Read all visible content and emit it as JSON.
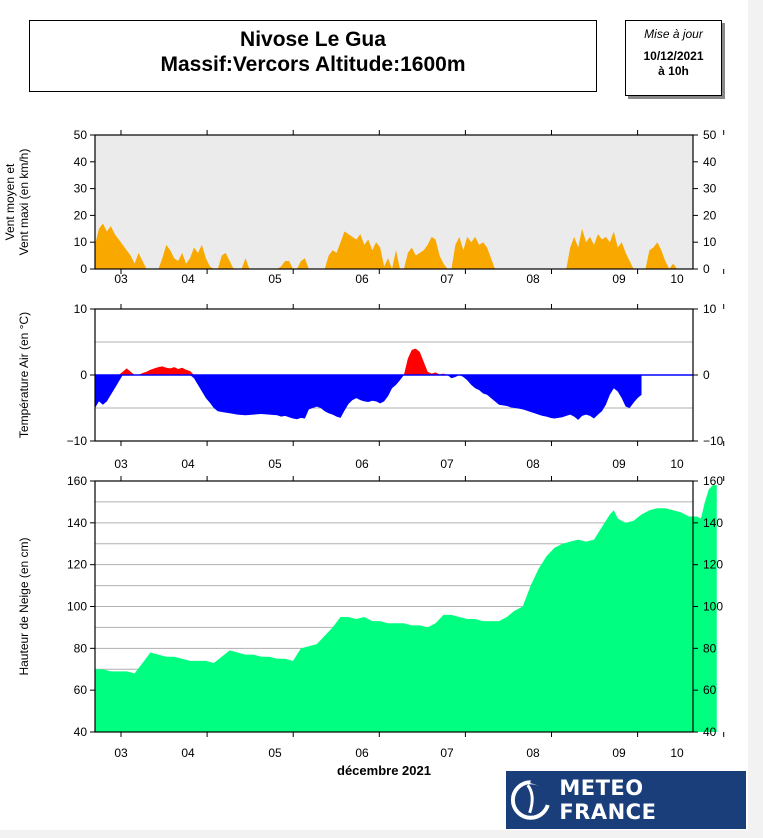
{
  "header": {
    "title_line1": "Nivose Le Gua",
    "title_line2": "Massif:Vercors Altitude:1600m",
    "update_label": "Mise à jour",
    "update_date": "10/12/2021",
    "update_time": "à 10h"
  },
  "brand": {
    "name": "METEO FRANCE",
    "logo_icon": "meteo-france-swirl-icon"
  },
  "colors": {
    "wind": "#f9a800",
    "temp_pos": "#ff0000",
    "temp_neg": "#0000ff",
    "snow": "#00ff80",
    "plot_bg_wind": "#ebebeb"
  },
  "chart_data": [
    {
      "type": "area",
      "ylabel_line1": "Vent moyen et",
      "ylabel_line2": "Vent maxi (en km/h)",
      "ylim": [
        0,
        50
      ],
      "yticks": [
        0,
        10,
        20,
        30,
        40,
        50
      ],
      "grid": false,
      "x_day_labels": [
        "03",
        "04",
        "05",
        "06",
        "07",
        "08",
        "09",
        "10"
      ],
      "x_range_days": [
        2.6,
        10.15
      ],
      "points": [
        [
          2.6,
          9
        ],
        [
          2.65,
          15
        ],
        [
          2.7,
          17
        ],
        [
          2.75,
          14
        ],
        [
          2.8,
          16
        ],
        [
          2.85,
          13
        ],
        [
          2.9,
          11
        ],
        [
          2.95,
          9
        ],
        [
          3.0,
          7
        ],
        [
          3.05,
          5
        ],
        [
          3.1,
          2
        ],
        [
          3.15,
          6
        ],
        [
          3.2,
          3
        ],
        [
          3.25,
          0
        ],
        [
          3.4,
          0
        ],
        [
          3.45,
          4
        ],
        [
          3.5,
          9
        ],
        [
          3.55,
          7
        ],
        [
          3.6,
          4
        ],
        [
          3.65,
          3
        ],
        [
          3.7,
          6
        ],
        [
          3.75,
          2
        ],
        [
          3.8,
          4
        ],
        [
          3.85,
          8
        ],
        [
          3.9,
          6
        ],
        [
          3.95,
          9
        ],
        [
          4.0,
          4
        ],
        [
          4.05,
          1
        ],
        [
          4.1,
          0
        ],
        [
          4.15,
          0
        ],
        [
          4.2,
          5
        ],
        [
          4.25,
          6
        ],
        [
          4.3,
          3
        ],
        [
          4.35,
          0
        ],
        [
          4.45,
          0
        ],
        [
          4.5,
          4
        ],
        [
          4.55,
          0
        ],
        [
          4.9,
          0
        ],
        [
          4.95,
          1
        ],
        [
          5.0,
          3
        ],
        [
          5.05,
          3
        ],
        [
          5.1,
          0
        ],
        [
          5.15,
          0
        ],
        [
          5.2,
          3
        ],
        [
          5.25,
          4
        ],
        [
          5.3,
          0
        ],
        [
          5.5,
          0
        ],
        [
          5.55,
          5
        ],
        [
          5.6,
          7
        ],
        [
          5.65,
          6
        ],
        [
          5.7,
          10
        ],
        [
          5.75,
          14
        ],
        [
          5.8,
          13
        ],
        [
          5.85,
          12
        ],
        [
          5.9,
          11
        ],
        [
          5.95,
          13
        ],
        [
          6.0,
          9
        ],
        [
          6.05,
          11
        ],
        [
          6.1,
          7
        ],
        [
          6.15,
          10
        ],
        [
          6.2,
          8
        ],
        [
          6.25,
          1
        ],
        [
          6.3,
          4
        ],
        [
          6.35,
          0
        ],
        [
          6.4,
          7
        ],
        [
          6.45,
          0
        ],
        [
          6.5,
          0
        ],
        [
          6.55,
          6
        ],
        [
          6.6,
          8
        ],
        [
          6.65,
          5
        ],
        [
          6.7,
          6
        ],
        [
          6.75,
          7
        ],
        [
          6.8,
          9
        ],
        [
          6.85,
          12
        ],
        [
          6.9,
          11
        ],
        [
          6.95,
          5
        ],
        [
          7.0,
          2
        ],
        [
          7.05,
          0
        ],
        [
          7.1,
          0
        ],
        [
          7.15,
          9
        ],
        [
          7.2,
          12
        ],
        [
          7.25,
          7
        ],
        [
          7.3,
          12
        ],
        [
          7.35,
          10
        ],
        [
          7.4,
          12
        ],
        [
          7.45,
          9
        ],
        [
          7.5,
          10
        ],
        [
          7.55,
          8
        ],
        [
          7.6,
          4
        ],
        [
          7.65,
          0
        ],
        [
          8.55,
          0
        ],
        [
          8.6,
          8
        ],
        [
          8.65,
          12
        ],
        [
          8.7,
          8
        ],
        [
          8.75,
          15
        ],
        [
          8.8,
          10
        ],
        [
          8.85,
          12
        ],
        [
          8.9,
          9
        ],
        [
          8.95,
          13
        ],
        [
          9.0,
          11
        ],
        [
          9.05,
          12
        ],
        [
          9.1,
          10
        ],
        [
          9.15,
          14
        ],
        [
          9.2,
          8
        ],
        [
          9.25,
          10
        ],
        [
          9.3,
          6
        ],
        [
          9.35,
          3
        ],
        [
          9.4,
          0
        ],
        [
          9.55,
          0
        ],
        [
          9.6,
          7
        ],
        [
          9.65,
          8
        ],
        [
          9.7,
          10
        ],
        [
          9.75,
          7
        ],
        [
          9.8,
          3
        ],
        [
          9.85,
          0
        ],
        [
          9.9,
          2
        ],
        [
          9.95,
          0
        ]
      ]
    },
    {
      "type": "area",
      "ylabel": "Température Air (en °C)",
      "ylim": [
        -10,
        10
      ],
      "yticks": [
        -10,
        0,
        10
      ],
      "grid": true,
      "x_day_labels": [
        "03",
        "04",
        "05",
        "06",
        "07",
        "08",
        "09",
        "10"
      ],
      "x_range_days": [
        2.6,
        10.15
      ],
      "points": [
        [
          2.6,
          -5
        ],
        [
          2.65,
          -4
        ],
        [
          2.7,
          -4.5
        ],
        [
          2.75,
          -4
        ],
        [
          2.8,
          -3
        ],
        [
          2.85,
          -2
        ],
        [
          2.9,
          -1
        ],
        [
          2.95,
          0.5
        ],
        [
          3.0,
          1
        ],
        [
          3.05,
          0.5
        ],
        [
          3.1,
          0
        ],
        [
          3.15,
          0
        ],
        [
          3.2,
          0.3
        ],
        [
          3.25,
          0.5
        ],
        [
          3.3,
          0.8
        ],
        [
          3.35,
          1.0
        ],
        [
          3.4,
          1.2
        ],
        [
          3.45,
          1.3
        ],
        [
          3.5,
          1.1
        ],
        [
          3.55,
          1.0
        ],
        [
          3.6,
          1.2
        ],
        [
          3.65,
          0.9
        ],
        [
          3.7,
          1.1
        ],
        [
          3.75,
          0.8
        ],
        [
          3.8,
          0.6
        ],
        [
          3.85,
          -0.5
        ],
        [
          3.9,
          -1.5
        ],
        [
          3.95,
          -2.5
        ],
        [
          4.0,
          -3.5
        ],
        [
          4.05,
          -4.2
        ],
        [
          4.1,
          -5
        ],
        [
          4.15,
          -5.5
        ],
        [
          4.2,
          -5.6
        ],
        [
          4.3,
          -5.8
        ],
        [
          4.4,
          -6.0
        ],
        [
          4.5,
          -6.1
        ],
        [
          4.6,
          -6.0
        ],
        [
          4.7,
          -5.9
        ],
        [
          4.8,
          -6.0
        ],
        [
          4.9,
          -6.1
        ],
        [
          4.95,
          -6.3
        ],
        [
          5.0,
          -6.2
        ],
        [
          5.05,
          -6.4
        ],
        [
          5.1,
          -6.6
        ],
        [
          5.15,
          -6.7
        ],
        [
          5.2,
          -6.5
        ],
        [
          5.25,
          -6.6
        ],
        [
          5.3,
          -5.2
        ],
        [
          5.35,
          -5.0
        ],
        [
          5.4,
          -4.8
        ],
        [
          5.45,
          -5.0
        ],
        [
          5.5,
          -5.5
        ],
        [
          5.55,
          -5.8
        ],
        [
          5.6,
          -6.0
        ],
        [
          5.65,
          -6.3
        ],
        [
          5.7,
          -6.5
        ],
        [
          5.75,
          -5.4
        ],
        [
          5.8,
          -4.4
        ],
        [
          5.85,
          -3.8
        ],
        [
          5.9,
          -3.5
        ],
        [
          5.95,
          -3.8
        ],
        [
          6.0,
          -4.0
        ],
        [
          6.05,
          -4.1
        ],
        [
          6.1,
          -3.9
        ],
        [
          6.15,
          -4.0
        ],
        [
          6.2,
          -4.3
        ],
        [
          6.25,
          -4.0
        ],
        [
          6.3,
          -3.2
        ],
        [
          6.35,
          -2.0
        ],
        [
          6.4,
          -1.5
        ],
        [
          6.45,
          -0.8
        ],
        [
          6.5,
          0
        ],
        [
          6.55,
          2.5
        ],
        [
          6.6,
          3.8
        ],
        [
          6.65,
          4.0
        ],
        [
          6.7,
          3.5
        ],
        [
          6.75,
          2.0
        ],
        [
          6.8,
          0.5
        ],
        [
          6.85,
          0.2
        ],
        [
          6.9,
          0.4
        ],
        [
          6.95,
          0.1
        ],
        [
          7.0,
          0.2
        ],
        [
          7.05,
          0
        ],
        [
          7.1,
          -0.5
        ],
        [
          7.15,
          -0.3
        ],
        [
          7.2,
          0
        ],
        [
          7.25,
          -0.3
        ],
        [
          7.3,
          -0.8
        ],
        [
          7.35,
          -1.5
        ],
        [
          7.4,
          -2.0
        ],
        [
          7.45,
          -2.3
        ],
        [
          7.5,
          -2.8
        ],
        [
          7.55,
          -3.0
        ],
        [
          7.6,
          -3.5
        ],
        [
          7.65,
          -4.0
        ],
        [
          7.7,
          -4.5
        ],
        [
          7.75,
          -4.6
        ],
        [
          7.8,
          -4.7
        ],
        [
          7.85,
          -4.9
        ],
        [
          7.9,
          -5.0
        ],
        [
          7.95,
          -5.1
        ],
        [
          8.0,
          -5.2
        ],
        [
          8.05,
          -5.4
        ],
        [
          8.1,
          -5.6
        ],
        [
          8.15,
          -5.8
        ],
        [
          8.2,
          -6.0
        ],
        [
          8.25,
          -6.2
        ],
        [
          8.3,
          -6.3
        ],
        [
          8.35,
          -6.5
        ],
        [
          8.4,
          -6.6
        ],
        [
          8.45,
          -6.5
        ],
        [
          8.5,
          -6.4
        ],
        [
          8.55,
          -6.2
        ],
        [
          8.6,
          -6.0
        ],
        [
          8.65,
          -6.3
        ],
        [
          8.7,
          -6.8
        ],
        [
          8.75,
          -6.2
        ],
        [
          8.8,
          -6.0
        ],
        [
          8.85,
          -6.2
        ],
        [
          8.9,
          -6.6
        ],
        [
          8.95,
          -6.0
        ],
        [
          9.0,
          -5.5
        ],
        [
          9.05,
          -4.5
        ],
        [
          9.1,
          -3.0
        ],
        [
          9.15,
          -2.0
        ],
        [
          9.2,
          -2.5
        ],
        [
          9.25,
          -3.5
        ],
        [
          9.3,
          -4.8
        ],
        [
          9.35,
          -5.0
        ],
        [
          9.4,
          -4.2
        ],
        [
          9.45,
          -3.5
        ],
        [
          9.5,
          -3.0
        ]
      ]
    },
    {
      "type": "area",
      "ylabel": "Hauteur de Neige (en cm)",
      "xlabel": "décembre 2021",
      "ylim": [
        40,
        160
      ],
      "yticks": [
        40,
        60,
        80,
        100,
        120,
        140,
        160
      ],
      "grid": true,
      "x_day_labels": [
        "03",
        "04",
        "05",
        "06",
        "07",
        "08",
        "09",
        "10"
      ],
      "x_range_days": [
        2.6,
        10.15
      ],
      "points": [
        [
          2.6,
          70
        ],
        [
          2.7,
          70
        ],
        [
          2.8,
          69
        ],
        [
          2.9,
          69
        ],
        [
          3.0,
          69
        ],
        [
          3.1,
          68
        ],
        [
          3.2,
          73
        ],
        [
          3.3,
          78
        ],
        [
          3.4,
          77
        ],
        [
          3.5,
          76
        ],
        [
          3.6,
          76
        ],
        [
          3.7,
          75
        ],
        [
          3.8,
          74
        ],
        [
          3.9,
          74
        ],
        [
          4.0,
          74
        ],
        [
          4.1,
          73
        ],
        [
          4.2,
          76
        ],
        [
          4.3,
          79
        ],
        [
          4.4,
          78
        ],
        [
          4.5,
          77
        ],
        [
          4.6,
          77
        ],
        [
          4.7,
          76
        ],
        [
          4.8,
          76
        ],
        [
          4.9,
          75
        ],
        [
          5.0,
          75
        ],
        [
          5.1,
          74
        ],
        [
          5.2,
          80
        ],
        [
          5.3,
          81
        ],
        [
          5.4,
          82
        ],
        [
          5.5,
          86
        ],
        [
          5.6,
          90
        ],
        [
          5.7,
          95
        ],
        [
          5.8,
          95
        ],
        [
          5.9,
          94
        ],
        [
          6.0,
          95
        ],
        [
          6.1,
          93
        ],
        [
          6.2,
          93
        ],
        [
          6.3,
          92
        ],
        [
          6.4,
          92
        ],
        [
          6.5,
          92
        ],
        [
          6.6,
          91
        ],
        [
          6.7,
          91
        ],
        [
          6.8,
          90
        ],
        [
          6.9,
          92
        ],
        [
          7.0,
          96
        ],
        [
          7.1,
          96
        ],
        [
          7.2,
          95
        ],
        [
          7.3,
          94
        ],
        [
          7.4,
          94
        ],
        [
          7.5,
          93
        ],
        [
          7.6,
          93
        ],
        [
          7.7,
          93
        ],
        [
          7.8,
          95
        ],
        [
          7.9,
          98
        ],
        [
          8.0,
          100
        ],
        [
          8.1,
          110
        ],
        [
          8.2,
          118
        ],
        [
          8.3,
          124
        ],
        [
          8.4,
          128
        ],
        [
          8.5,
          130
        ],
        [
          8.6,
          131
        ],
        [
          8.7,
          132
        ],
        [
          8.8,
          131
        ],
        [
          8.9,
          132
        ],
        [
          9.0,
          138
        ],
        [
          9.1,
          144
        ],
        [
          9.15,
          146
        ],
        [
          9.2,
          142
        ],
        [
          9.3,
          140
        ],
        [
          9.4,
          141
        ],
        [
          9.5,
          144
        ],
        [
          9.6,
          146
        ],
        [
          9.7,
          147
        ],
        [
          9.8,
          147
        ],
        [
          9.9,
          146
        ],
        [
          10.0,
          145
        ],
        [
          10.05,
          144
        ],
        [
          10.1,
          143
        ],
        [
          10.15,
          143
        ],
        [
          10.2,
          143
        ],
        [
          10.25,
          142
        ],
        [
          10.3,
          150
        ],
        [
          10.35,
          156
        ],
        [
          10.4,
          158
        ],
        [
          10.45,
          158
        ]
      ]
    }
  ]
}
